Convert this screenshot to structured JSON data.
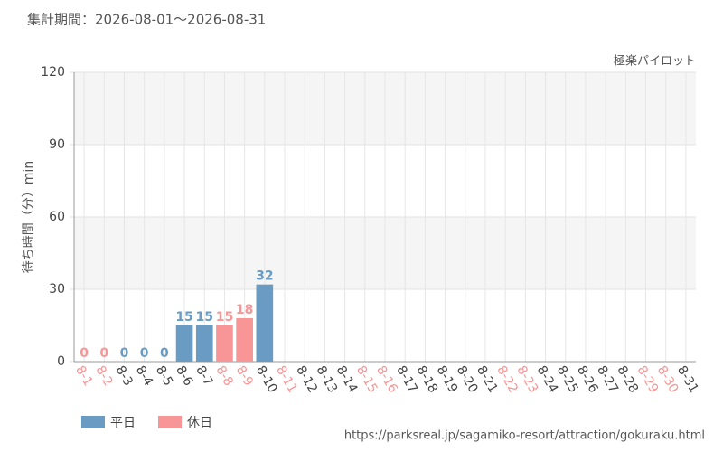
{
  "chart_data": {
    "type": "bar",
    "title": "集計期間：2026-08-01～2026-08-31",
    "subtitle": "極楽パイロット",
    "y_label": "待ち時間（分）min",
    "source": "https://parksreal.jp/sagamiko-resort/attraction/gokuraku.html",
    "categories": [
      "8-1",
      "8-2",
      "8-3",
      "8-4",
      "8-5",
      "8-6",
      "8-7",
      "8-8",
      "8-9",
      "8-10",
      "8-11",
      "8-12",
      "8-13",
      "8-14",
      "8-15",
      "8-16",
      "8-17",
      "8-18",
      "8-19",
      "8-20",
      "8-21",
      "8-22",
      "8-23",
      "8-24",
      "8-25",
      "8-26",
      "8-27",
      "8-28",
      "8-29",
      "8-30",
      "8-31"
    ],
    "category_series": [
      1,
      1,
      0,
      0,
      0,
      0,
      0,
      1,
      1,
      0,
      1,
      0,
      0,
      0,
      1,
      1,
      0,
      0,
      0,
      0,
      0,
      1,
      1,
      0,
      0,
      0,
      0,
      0,
      1,
      1,
      0
    ],
    "series": [
      {
        "name": "平日",
        "color": "#6a9bc3",
        "values": [
          null,
          null,
          0,
          0,
          0,
          15,
          15,
          null,
          null,
          32,
          null,
          null,
          null,
          null,
          null,
          null,
          null,
          null,
          null,
          null,
          null,
          null,
          null,
          null,
          null,
          null,
          null,
          null,
          null,
          null,
          null
        ]
      },
      {
        "name": "休日",
        "color": "#f89596",
        "values": [
          0,
          0,
          null,
          null,
          null,
          null,
          null,
          15,
          18,
          null,
          null,
          null,
          null,
          null,
          null,
          null,
          null,
          null,
          null,
          null,
          null,
          null,
          null,
          null,
          null,
          null,
          null,
          null,
          null,
          null,
          null
        ]
      }
    ],
    "ylim": [
      0,
      120
    ],
    "yticks": [
      0,
      30,
      60,
      90,
      120
    ],
    "grid": true
  }
}
